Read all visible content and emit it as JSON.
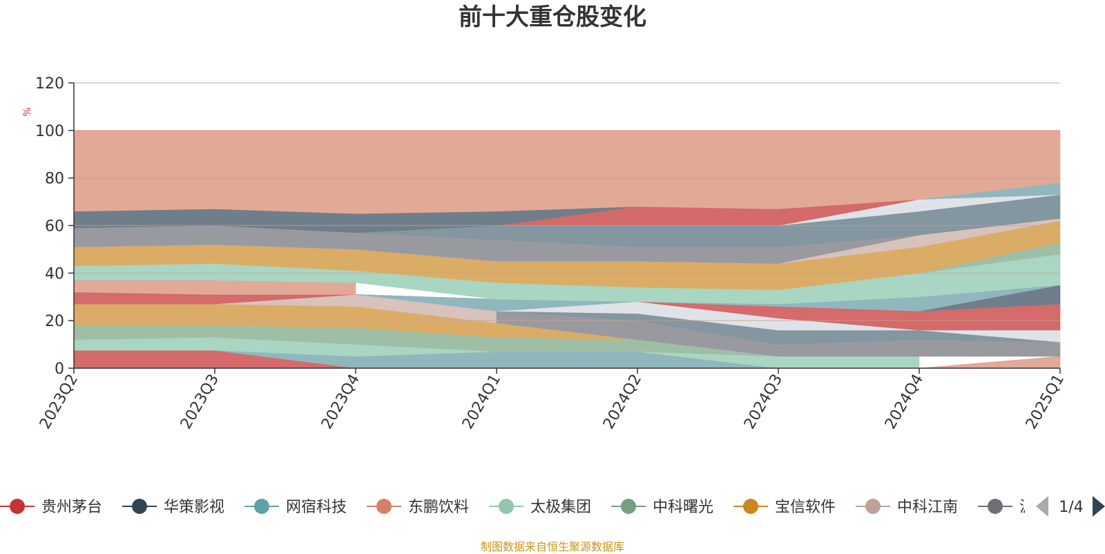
{
  "chart_data": {
    "type": "area",
    "title": "前十大重仓股变化",
    "ylabel": "%",
    "ylim": [
      0,
      120
    ],
    "yticks": [
      0,
      20,
      40,
      60,
      80,
      100,
      120
    ],
    "grid": true,
    "categories": [
      "2023Q2",
      "2023Q3",
      "2023Q4",
      "2024Q1",
      "2024Q2",
      "2024Q3",
      "2024Q4",
      "2025Q1"
    ],
    "layers": [
      {
        "color": "#d46a6a",
        "values": [
          [
            0,
            7.5
          ],
          [
            0,
            7.5
          ],
          [
            0,
            0
          ],
          [
            null,
            null
          ],
          [
            null,
            null
          ],
          [
            null,
            null
          ],
          [
            null,
            null
          ],
          [
            null,
            null
          ]
        ]
      },
      {
        "color": "#8fb7bd",
        "values": [
          [
            null,
            null
          ],
          [
            7.5,
            7.5
          ],
          [
            0,
            5
          ],
          [
            0,
            7
          ],
          [
            0,
            7
          ],
          [
            0,
            0
          ],
          [
            null,
            null
          ],
          [
            null,
            null
          ]
        ]
      },
      {
        "color": "#a8d6c2",
        "values": [
          [
            7.5,
            12
          ],
          [
            7.5,
            13
          ],
          [
            5,
            10
          ],
          [
            7,
            7
          ],
          [
            7,
            7
          ],
          [
            0,
            5
          ],
          [
            0,
            5
          ],
          [
            null,
            null
          ]
        ]
      },
      {
        "color": "#e2a996",
        "values": [
          [
            null,
            null
          ],
          [
            null,
            null
          ],
          [
            null,
            null
          ],
          [
            null,
            null
          ],
          [
            null,
            null
          ],
          [
            null,
            null
          ],
          [
            0,
            0
          ],
          [
            0,
            5
          ]
        ]
      },
      {
        "color": "#9fbea6",
        "values": [
          [
            12,
            18
          ],
          [
            13,
            18
          ],
          [
            10,
            17
          ],
          [
            7,
            13
          ],
          [
            7,
            12
          ],
          [
            5,
            5
          ],
          [
            5,
            5
          ],
          [
            5,
            5
          ]
        ]
      },
      {
        "color": "#6f7e8a",
        "values": [
          [
            12,
            12
          ],
          [
            null,
            null
          ],
          [
            null,
            null
          ],
          [
            null,
            null
          ],
          [
            null,
            null
          ],
          [
            null,
            null
          ],
          [
            null,
            null
          ],
          [
            null,
            null
          ]
        ]
      },
      {
        "color": "#dbac66",
        "values": [
          [
            18,
            27
          ],
          [
            18,
            27
          ],
          [
            17,
            26
          ],
          [
            13,
            19
          ],
          [
            12,
            12
          ],
          [
            null,
            null
          ],
          [
            null,
            null
          ],
          [
            null,
            null
          ]
        ]
      },
      {
        "color": "#d8c2bc",
        "values": [
          [
            null,
            null
          ],
          [
            27,
            27
          ],
          [
            26,
            31
          ],
          [
            19,
            24
          ],
          [
            null,
            null
          ],
          [
            null,
            null
          ],
          [
            null,
            null
          ],
          [
            null,
            null
          ]
        ]
      },
      {
        "color": "#999aa0",
        "values": [
          [
            null,
            null
          ],
          [
            null,
            null
          ],
          [
            null,
            null
          ],
          [
            19,
            24
          ],
          [
            12,
            20
          ],
          [
            5,
            10
          ],
          [
            5,
            12
          ],
          [
            5,
            11
          ]
        ]
      },
      {
        "color": "#8496a0",
        "values": [
          [
            null,
            null
          ],
          [
            null,
            null
          ],
          [
            null,
            null
          ],
          [
            24,
            24
          ],
          [
            20,
            23
          ],
          [
            10,
            16
          ],
          [
            12,
            16
          ],
          [
            11,
            11
          ]
        ]
      },
      {
        "color": "#dfe3e9",
        "values": [
          [
            null,
            null
          ],
          [
            null,
            null
          ],
          [
            null,
            null
          ],
          [
            24,
            24
          ],
          [
            23,
            28
          ],
          [
            16,
            21
          ],
          [
            16,
            16
          ],
          [
            11,
            16
          ]
        ]
      },
      {
        "color": "#d46a6a",
        "values": [
          [
            27,
            32
          ],
          [
            27,
            31
          ],
          [
            31,
            31
          ],
          [
            29,
            29
          ],
          [
            28,
            28
          ],
          [
            21,
            26
          ],
          [
            16,
            24
          ],
          [
            16,
            27
          ]
        ]
      },
      {
        "color": "#6f7e8a",
        "values": [
          [
            null,
            null
          ],
          [
            null,
            null
          ],
          [
            null,
            null
          ],
          [
            null,
            null
          ],
          [
            null,
            null
          ],
          [
            null,
            null
          ],
          [
            24,
            24
          ],
          [
            27,
            35
          ]
        ]
      },
      {
        "color": "#8fb7bd",
        "values": [
          [
            null,
            null
          ],
          [
            null,
            null
          ],
          [
            31,
            31
          ],
          [
            29,
            24
          ],
          [
            28,
            28
          ],
          [
            26,
            27
          ],
          [
            24,
            30
          ],
          [
            35,
            35
          ]
        ]
      },
      {
        "color": "#e2a996",
        "values": [
          [
            32,
            37
          ],
          [
            31,
            37
          ],
          [
            31,
            36
          ],
          [
            null,
            null
          ],
          [
            null,
            null
          ],
          [
            null,
            null
          ],
          [
            null,
            null
          ],
          [
            null,
            null
          ]
        ]
      },
      {
        "color": "#a8d6c2",
        "values": [
          [
            37,
            43
          ],
          [
            37,
            44
          ],
          [
            36,
            41
          ],
          [
            29,
            36
          ],
          [
            28,
            34
          ],
          [
            27,
            33
          ],
          [
            30,
            40
          ],
          [
            35,
            48
          ]
        ]
      },
      {
        "color": "#9fbea6",
        "values": [
          [
            null,
            null
          ],
          [
            null,
            null
          ],
          [
            null,
            null
          ],
          [
            null,
            null
          ],
          [
            null,
            null
          ],
          [
            null,
            null
          ],
          [
            40,
            40
          ],
          [
            48,
            53
          ]
        ]
      },
      {
        "color": "#dbac66",
        "values": [
          [
            43,
            51
          ],
          [
            44,
            52
          ],
          [
            41,
            50
          ],
          [
            36,
            45
          ],
          [
            34,
            45
          ],
          [
            33,
            44
          ],
          [
            40,
            51
          ],
          [
            53,
            62
          ]
        ]
      },
      {
        "color": "#d8c2bc",
        "values": [
          [
            null,
            null
          ],
          [
            null,
            null
          ],
          [
            null,
            null
          ],
          [
            null,
            null
          ],
          [
            null,
            null
          ],
          [
            44,
            44
          ],
          [
            51,
            56
          ],
          [
            62,
            63
          ]
        ]
      },
      {
        "color": "#999aa0",
        "values": [
          [
            51,
            59
          ],
          [
            52,
            60
          ],
          [
            50,
            57
          ],
          [
            45,
            54
          ],
          [
            45,
            51
          ],
          [
            44,
            51
          ],
          [
            56,
            56
          ],
          [
            null,
            null
          ]
        ]
      },
      {
        "color": "#8496a0",
        "values": [
          [
            null,
            null
          ],
          [
            null,
            null
          ],
          [
            57,
            57
          ],
          [
            54,
            60
          ],
          [
            51,
            60
          ],
          [
            51,
            60
          ],
          [
            56,
            66
          ],
          [
            63,
            73
          ]
        ]
      },
      {
        "color": "#dfe3e9",
        "values": [
          [
            null,
            null
          ],
          [
            null,
            null
          ],
          [
            null,
            null
          ],
          [
            null,
            null
          ],
          [
            null,
            null
          ],
          [
            60,
            60
          ],
          [
            66,
            71
          ],
          [
            73,
            73
          ]
        ]
      },
      {
        "color": "#d46a6a",
        "values": [
          [
            null,
            null
          ],
          [
            null,
            null
          ],
          [
            null,
            null
          ],
          [
            60,
            60
          ],
          [
            60,
            68
          ],
          [
            60,
            67
          ],
          [
            71,
            71
          ],
          [
            null,
            null
          ]
        ]
      },
      {
        "color": "#6f7e8a",
        "values": [
          [
            59,
            66
          ],
          [
            60,
            67
          ],
          [
            57,
            65
          ],
          [
            60,
            66
          ],
          [
            68,
            68
          ],
          [
            null,
            null
          ],
          [
            null,
            null
          ],
          [
            null,
            null
          ]
        ]
      },
      {
        "color": "#8fb7bd",
        "values": [
          [
            null,
            null
          ],
          [
            null,
            null
          ],
          [
            null,
            null
          ],
          [
            null,
            null
          ],
          [
            null,
            null
          ],
          [
            null,
            null
          ],
          [
            71,
            71
          ],
          [
            73,
            78
          ]
        ]
      },
      {
        "color": "#e2a996",
        "values": [
          [
            66,
            100
          ],
          [
            67,
            100
          ],
          [
            65,
            100
          ],
          [
            66,
            100
          ],
          [
            68,
            100
          ],
          [
            67,
            100
          ],
          [
            71,
            100
          ],
          [
            78,
            100
          ]
        ]
      }
    ]
  },
  "legend": {
    "items": [
      {
        "label": "贵州茅台",
        "color": "#c23531"
      },
      {
        "label": "华策影视",
        "color": "#2f4554"
      },
      {
        "label": "网宿科技",
        "color": "#61a0a8"
      },
      {
        "label": "东鹏饮料",
        "color": "#d48265"
      },
      {
        "label": "太极集团",
        "color": "#91c7ae"
      },
      {
        "label": "中科曙光",
        "color": "#749f83"
      },
      {
        "label": "宝信软件",
        "color": "#ca8622"
      },
      {
        "label": "中科江南",
        "color": "#bda29a"
      },
      {
        "label": "沪",
        "color": "#6e7074"
      }
    ],
    "page_text": "1/4",
    "prev_color": "#aaaaaa",
    "next_color": "#2f4554"
  },
  "source": "制图数据来自恒生聚源数据库"
}
